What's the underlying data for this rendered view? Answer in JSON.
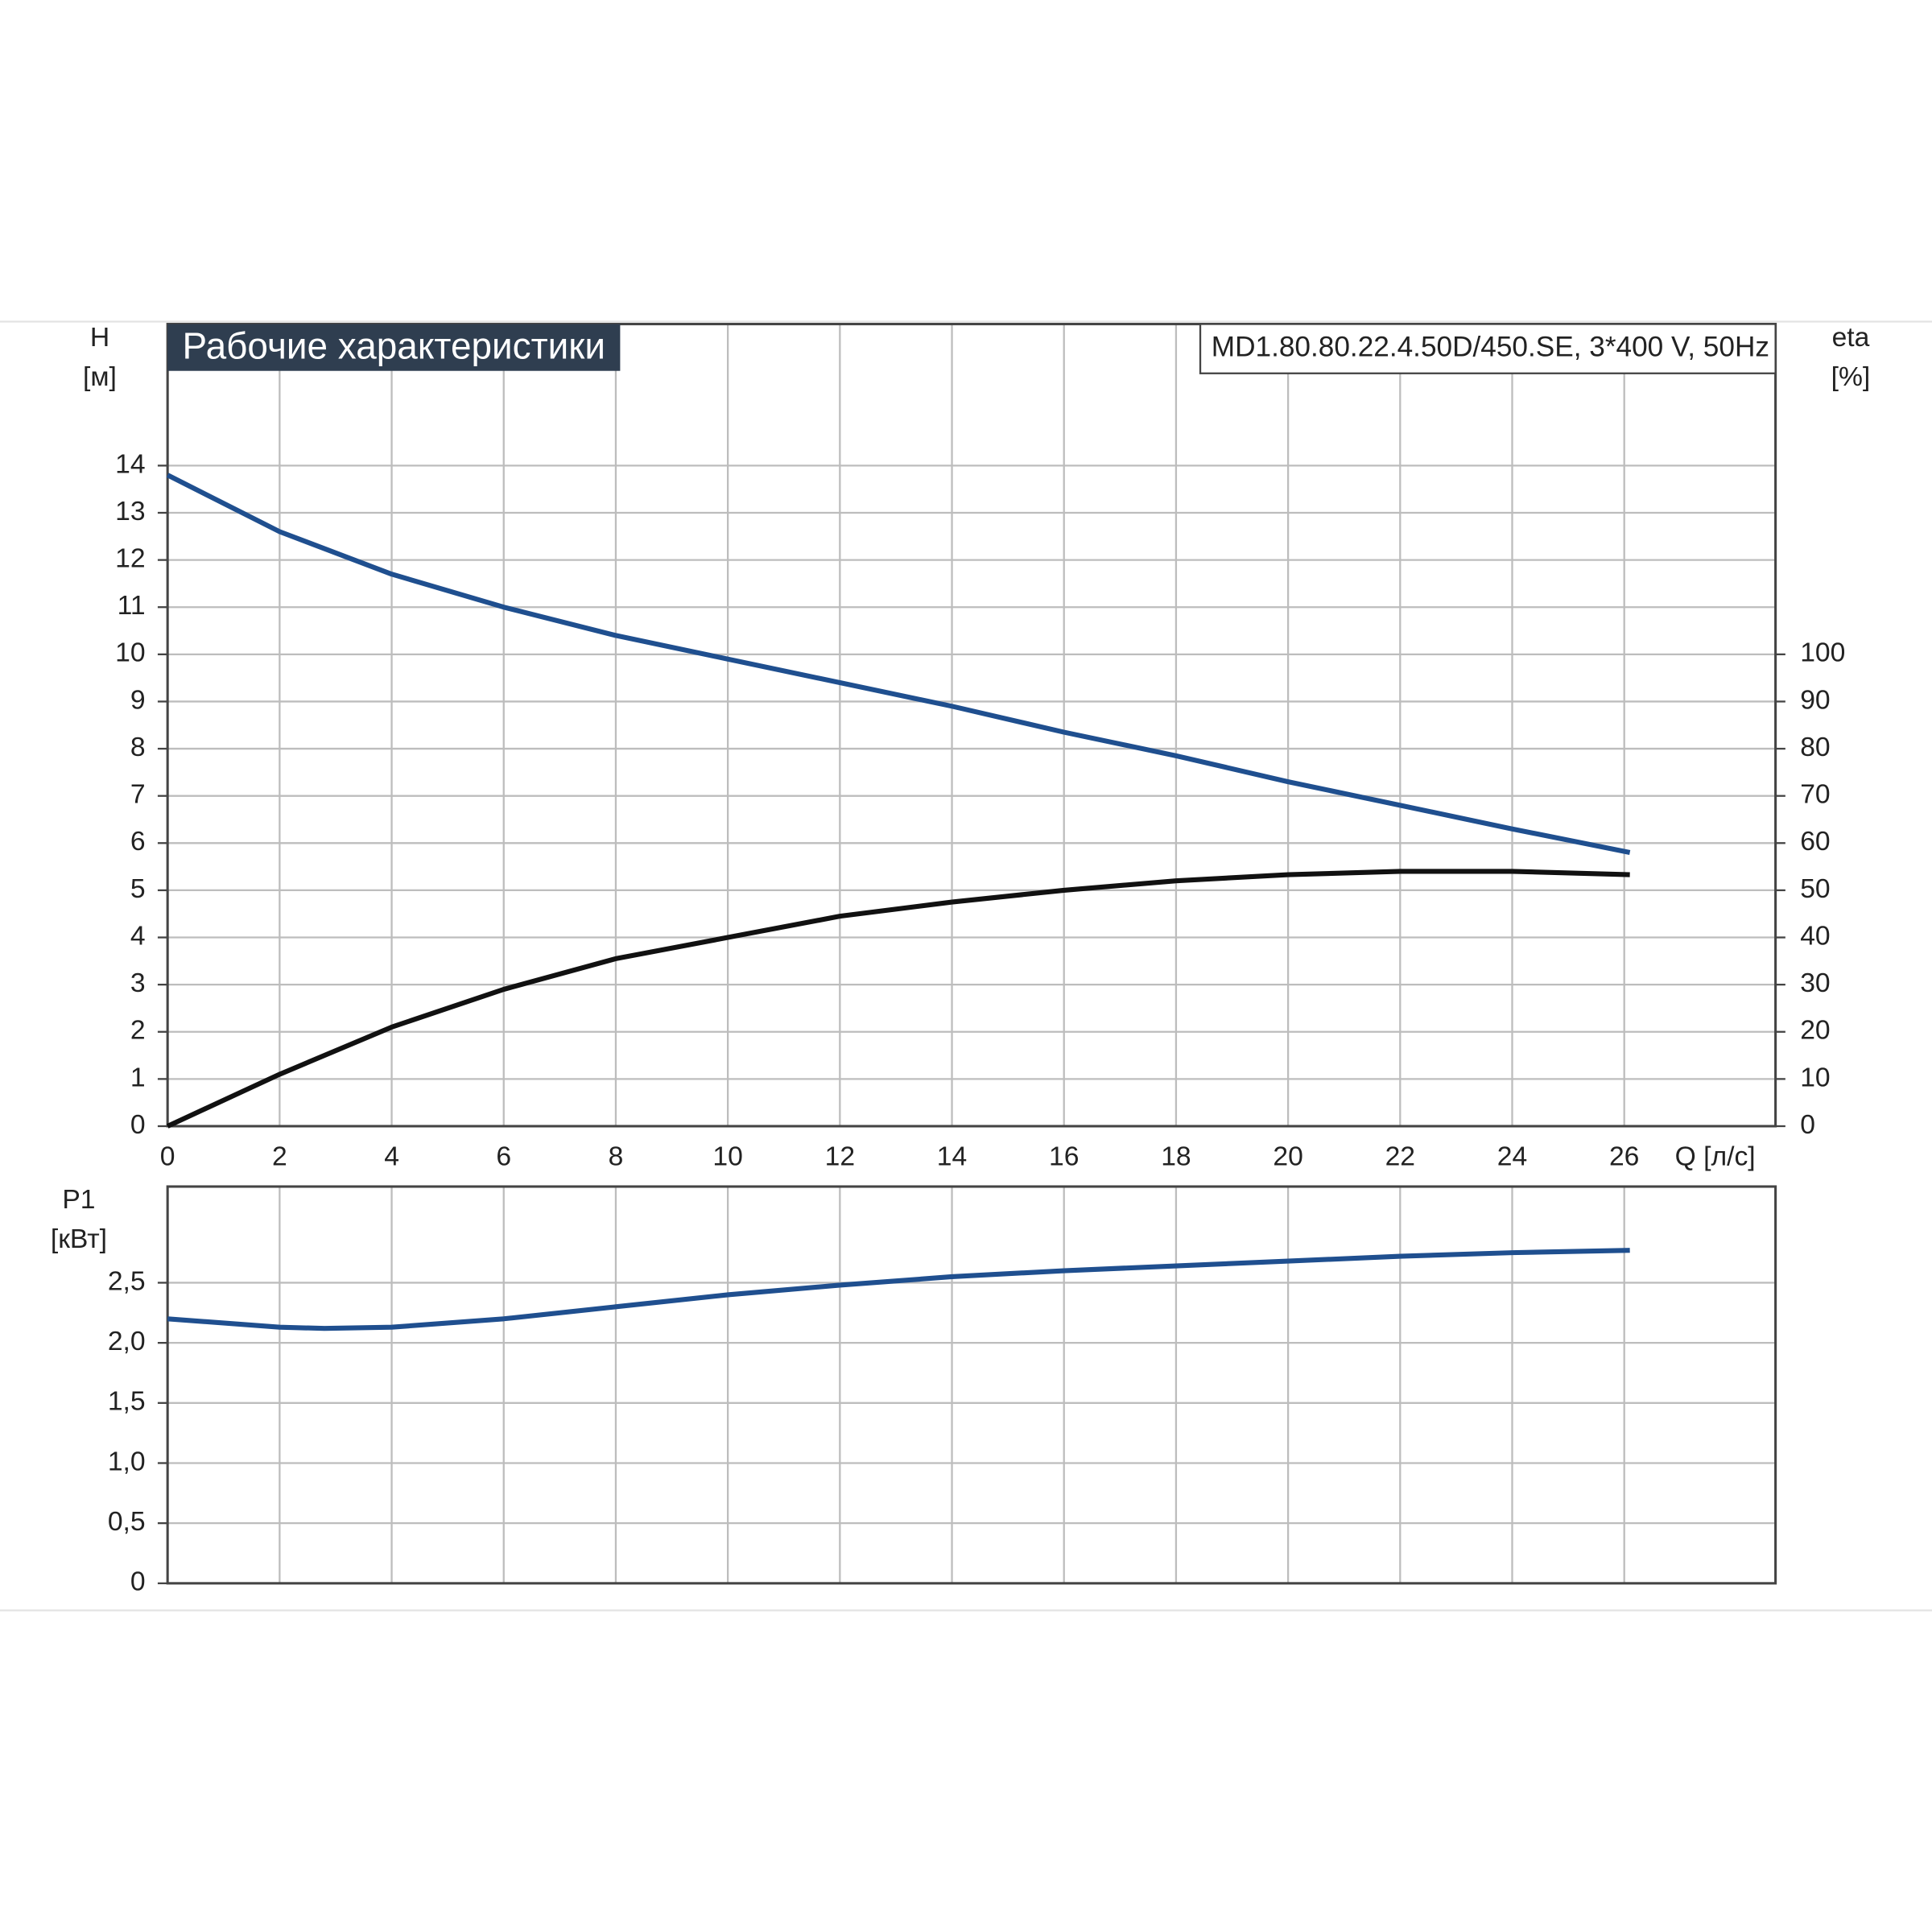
{
  "chart_data": [
    {
      "type": "line",
      "title": "Рабочие характеристики",
      "subtitle": "MD1.80.80.22.4.50D/450.SE, 3*400 V, 50Hz",
      "ylabel": [
        "H",
        "[м]"
      ],
      "y2label": [
        "eta",
        "[%]"
      ],
      "xlabel": "Q [л/с]",
      "xlim": [
        0,
        28.7
      ],
      "xticks": [
        0,
        2,
        4,
        6,
        8,
        10,
        12,
        14,
        16,
        18,
        20,
        22,
        24,
        26
      ],
      "ylim": [
        0,
        17
      ],
      "yticks": [
        0,
        1,
        2,
        3,
        4,
        5,
        6,
        7,
        8,
        9,
        10,
        11,
        12,
        13,
        14
      ],
      "y2lim": [
        0,
        170
      ],
      "y2ticks": [
        0,
        10,
        20,
        30,
        40,
        50,
        60,
        70,
        80,
        90,
        100
      ],
      "grid": true,
      "x": [
        0,
        2,
        4,
        6,
        8,
        10,
        12,
        14,
        16,
        18,
        20,
        22,
        24,
        26.1
      ],
      "series": [
        {
          "name": "H",
          "color": "#1f4f8f",
          "values": [
            13.8,
            12.6,
            11.7,
            11.0,
            10.4,
            9.9,
            9.4,
            8.9,
            8.35,
            7.85,
            7.3,
            6.8,
            6.3,
            5.8
          ]
        },
        {
          "name": "eta",
          "color": "#111111",
          "axis": "y2",
          "values": [
            0,
            11,
            21,
            29,
            35.5,
            40,
            44.5,
            47.5,
            50,
            52,
            53.3,
            54,
            54,
            53.3
          ]
        }
      ]
    },
    {
      "type": "line",
      "ylabel": [
        "P1",
        "[кВт]"
      ],
      "xlim": [
        0,
        28.7
      ],
      "ylim": [
        0,
        3.3
      ],
      "yticks": [
        0,
        {
          "value": 0.5,
          "label": "0,5"
        },
        {
          "value": 1.0,
          "label": "1,0"
        },
        {
          "value": 1.5,
          "label": "1,5"
        },
        {
          "value": 2.0,
          "label": "2,0"
        },
        {
          "value": 2.5,
          "label": "2,5"
        }
      ],
      "grid": true,
      "x": [
        0,
        2,
        2.8,
        4,
        6,
        8,
        10,
        12,
        14,
        16,
        18,
        20,
        22,
        24,
        26.1
      ],
      "series": [
        {
          "name": "P1",
          "color": "#1f4f8f",
          "values": [
            2.2,
            2.13,
            2.12,
            2.13,
            2.2,
            2.3,
            2.4,
            2.48,
            2.55,
            2.6,
            2.64,
            2.68,
            2.72,
            2.75,
            2.77
          ]
        }
      ]
    }
  ]
}
